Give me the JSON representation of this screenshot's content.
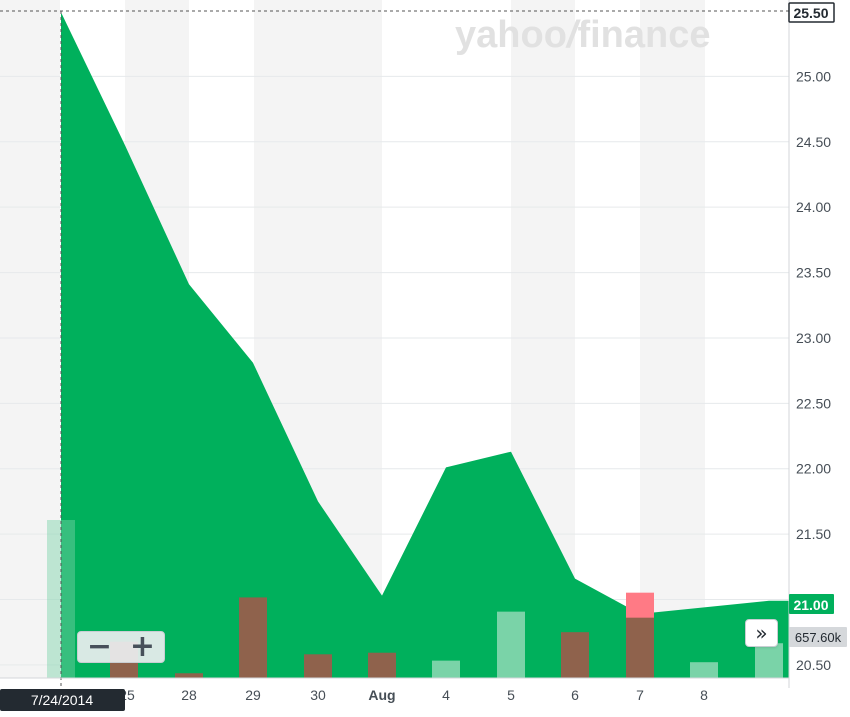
{
  "watermark": {
    "yahoo": "yahoo",
    "slash": "/",
    "finance": "finance"
  },
  "colors": {
    "area": "#00b05c",
    "up_volume": "#7ad3a8",
    "down_volume": "#8f624c",
    "red_volume": "#ff7a85",
    "band": "#f4f4f4",
    "grid": "#e6e9eb"
  },
  "chart_data": {
    "type": "area",
    "dates": [
      "7/24/2014",
      "7/25/2014",
      "7/28/2014",
      "7/29/2014",
      "7/30/2014",
      "7/31/2014",
      "8/1/2014",
      "8/4/2014",
      "8/5/2014",
      "8/6/2014",
      "8/7/2014",
      "8/8/2014"
    ],
    "x_tick_labels": [
      "25",
      "28",
      "29",
      "30",
      "Aug",
      "4",
      "5",
      "6",
      "7",
      "8"
    ],
    "close": [
      25.49,
      24.49,
      23.41,
      22.81,
      21.75,
      21.03,
      22.01,
      22.13,
      21.16,
      20.89,
      20.94,
      20.99
    ],
    "volume_colors": [
      "up",
      "down",
      "down",
      "down",
      "down",
      "down",
      "up",
      "up",
      "down",
      "red",
      "up",
      "up"
    ],
    "volume_relative": [
      1.0,
      0.23,
      0.03,
      0.51,
      0.15,
      0.16,
      0.11,
      0.42,
      0.29,
      0.54,
      0.1,
      0.22
    ],
    "y_ticks": [
      "25.00",
      "24.50",
      "24.00",
      "23.50",
      "23.00",
      "22.50",
      "22.00",
      "21.50",
      "21.00",
      "20.50"
    ],
    "ylim": [
      20.4,
      25.5
    ],
    "crosshair": {
      "date_label": "7/24/2014",
      "price_label": "25.50"
    },
    "last_price_label": "21.00",
    "last_volume_label": "657.60k"
  },
  "zoom": {
    "minus": "−",
    "plus": "+"
  },
  "nav": {
    "label": "»"
  }
}
